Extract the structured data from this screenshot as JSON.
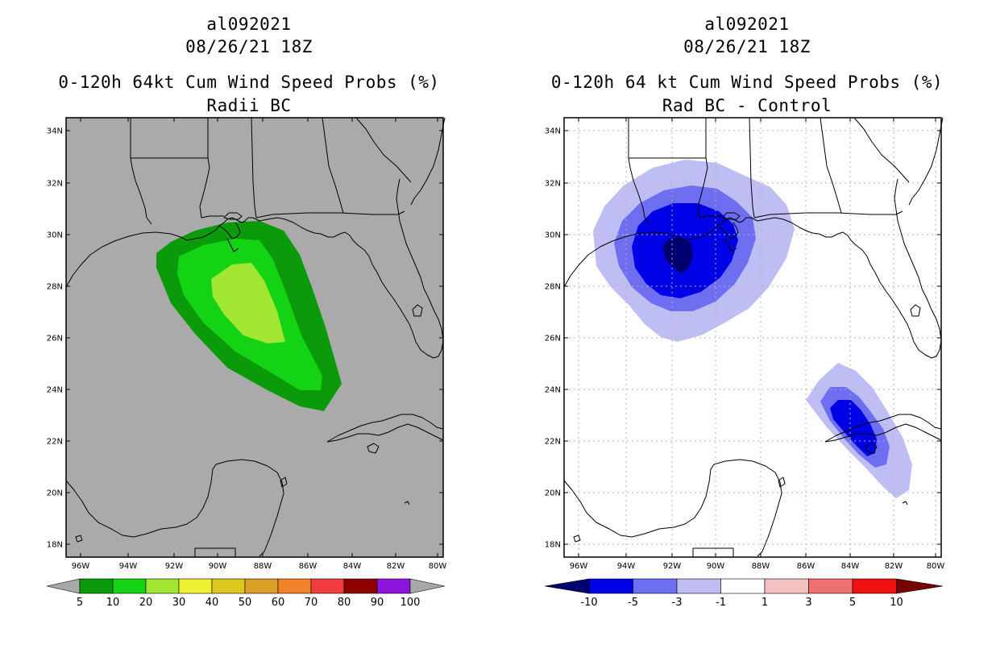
{
  "left_panel": {
    "title_line1": "al092021",
    "title_line2": "08/26/21 18Z",
    "title_line3": "0-120h 64kt Cum Wind Speed Probs (%)",
    "title_line4": "Radii BC",
    "colorbar": {
      "labels": [
        "5",
        "10",
        "20",
        "30",
        "40",
        "50",
        "60",
        "70",
        "80",
        "90",
        "100"
      ],
      "colors": [
        "#0a9a0a",
        "#14d214",
        "#a0e632",
        "#f0f032",
        "#dcc81e",
        "#dca028",
        "#f08228",
        "#f03c3c",
        "#8c0000",
        "#8c14dc"
      ]
    }
  },
  "right_panel": {
    "title_line1": "al092021",
    "title_line2": "08/26/21 18Z",
    "title_line3": "0-120h 64 kt Cum Wind Speed Probs (%)",
    "title_line4": "Rad BC - Control",
    "colorbar": {
      "labels": [
        "-10",
        "-5",
        "-3",
        "-1",
        "1",
        "3",
        "5",
        "10"
      ],
      "colors": [
        "#0000e6",
        "#6e6ef0",
        "#bebef5",
        "#ffffff",
        "#f5c0c0",
        "#f07070",
        "#f01010"
      ],
      "end_colors": [
        "#00006e",
        "#780000"
      ]
    }
  },
  "axes": {
    "lat_labels": [
      "34N",
      "32N",
      "30N",
      "28N",
      "26N",
      "24N",
      "22N",
      "20N",
      "18N"
    ],
    "lon_labels": [
      "96W",
      "94W",
      "92W",
      "90W",
      "88W",
      "86W",
      "84W",
      "82W",
      "80W"
    ]
  }
}
